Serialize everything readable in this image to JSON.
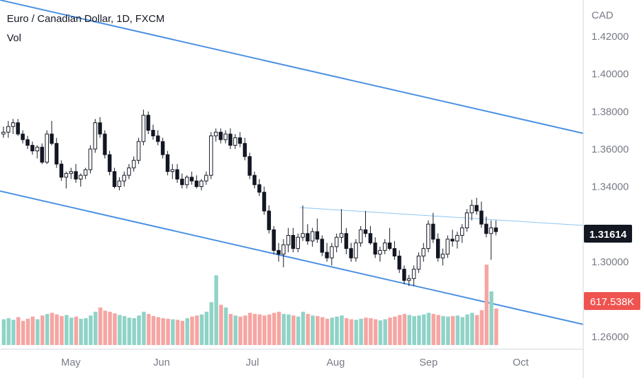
{
  "header": {
    "symbol_title": "Euro / Canadian Dollar, 1D, FXCM",
    "volume_label": "Vol"
  },
  "colors": {
    "up": "#26a69a",
    "down": "#ef5350",
    "vol_up": "#8fd3c7",
    "vol_down": "#f6a5a2",
    "channel": "#4a90e2",
    "neckline": "#8cc4f0",
    "price_label_bg": "#131722",
    "vol_label_bg": "#ef5350"
  },
  "chart_data": {
    "type": "candlestick",
    "currency": "CAD",
    "y_ticks": [
      "1.42000",
      "1.40000",
      "1.38000",
      "1.36000",
      "1.34000",
      "1.30000",
      "1.26000"
    ],
    "x_ticks": [
      "May",
      "Jun",
      "Jul",
      "Aug",
      "Sep",
      "Oct"
    ],
    "ylim": [
      1.255,
      1.43
    ],
    "last_price": "1.31614",
    "last_volume": "617.538K",
    "candles": [
      [
        1.368,
        1.372,
        1.366,
        1.369,
        48
      ],
      [
        1.369,
        1.375,
        1.366,
        1.372,
        50
      ],
      [
        1.372,
        1.376,
        1.368,
        1.374,
        47
      ],
      [
        1.374,
        1.376,
        1.367,
        1.368,
        52
      ],
      [
        1.368,
        1.37,
        1.363,
        1.365,
        45
      ],
      [
        1.365,
        1.367,
        1.36,
        1.362,
        49
      ],
      [
        1.362,
        1.364,
        1.357,
        1.359,
        53
      ],
      [
        1.359,
        1.362,
        1.355,
        1.361,
        48
      ],
      [
        1.361,
        1.363,
        1.352,
        1.353,
        55
      ],
      [
        1.353,
        1.37,
        1.352,
        1.368,
        58
      ],
      [
        1.368,
        1.375,
        1.362,
        1.363,
        60
      ],
      [
        1.363,
        1.366,
        1.35,
        1.352,
        57
      ],
      [
        1.352,
        1.354,
        1.343,
        1.345,
        54
      ],
      [
        1.345,
        1.348,
        1.339,
        1.347,
        56
      ],
      [
        1.347,
        1.35,
        1.344,
        1.348,
        51
      ],
      [
        1.348,
        1.352,
        1.342,
        1.344,
        53
      ],
      [
        1.344,
        1.347,
        1.34,
        1.346,
        49
      ],
      [
        1.346,
        1.35,
        1.344,
        1.349,
        50
      ],
      [
        1.349,
        1.362,
        1.347,
        1.36,
        55
      ],
      [
        1.36,
        1.376,
        1.358,
        1.374,
        62
      ],
      [
        1.374,
        1.377,
        1.366,
        1.368,
        70
      ],
      [
        1.368,
        1.37,
        1.355,
        1.357,
        64
      ],
      [
        1.357,
        1.359,
        1.346,
        1.348,
        62
      ],
      [
        1.348,
        1.35,
        1.339,
        1.34,
        59
      ],
      [
        1.34,
        1.345,
        1.338,
        1.343,
        56
      ],
      [
        1.343,
        1.348,
        1.34,
        1.346,
        54
      ],
      [
        1.346,
        1.352,
        1.344,
        1.35,
        51
      ],
      [
        1.35,
        1.356,
        1.348,
        1.354,
        50
      ],
      [
        1.354,
        1.366,
        1.352,
        1.364,
        55
      ],
      [
        1.364,
        1.381,
        1.362,
        1.378,
        62
      ],
      [
        1.378,
        1.38,
        1.368,
        1.37,
        58
      ],
      [
        1.37,
        1.373,
        1.365,
        1.367,
        54
      ],
      [
        1.367,
        1.37,
        1.362,
        1.364,
        52
      ],
      [
        1.364,
        1.366,
        1.355,
        1.357,
        50
      ],
      [
        1.357,
        1.359,
        1.346,
        1.348,
        49
      ],
      [
        1.348,
        1.352,
        1.344,
        1.349,
        48
      ],
      [
        1.349,
        1.352,
        1.342,
        1.344,
        47
      ],
      [
        1.344,
        1.347,
        1.339,
        1.341,
        45
      ],
      [
        1.341,
        1.346,
        1.339,
        1.345,
        50
      ],
      [
        1.345,
        1.348,
        1.341,
        1.343,
        53
      ],
      [
        1.343,
        1.346,
        1.339,
        1.34,
        55
      ],
      [
        1.34,
        1.344,
        1.338,
        1.343,
        57
      ],
      [
        1.343,
        1.348,
        1.341,
        1.346,
        62
      ],
      [
        1.346,
        1.369,
        1.344,
        1.367,
        80
      ],
      [
        1.367,
        1.371,
        1.364,
        1.369,
        130
      ],
      [
        1.369,
        1.371,
        1.363,
        1.365,
        75
      ],
      [
        1.365,
        1.37,
        1.363,
        1.368,
        70
      ],
      [
        1.368,
        1.371,
        1.36,
        1.362,
        58
      ],
      [
        1.362,
        1.368,
        1.36,
        1.366,
        55
      ],
      [
        1.366,
        1.369,
        1.361,
        1.363,
        53
      ],
      [
        1.363,
        1.366,
        1.354,
        1.356,
        55
      ],
      [
        1.356,
        1.358,
        1.344,
        1.346,
        60
      ],
      [
        1.346,
        1.348,
        1.339,
        1.341,
        58
      ],
      [
        1.341,
        1.344,
        1.335,
        1.337,
        57
      ],
      [
        1.337,
        1.34,
        1.325,
        1.327,
        55
      ],
      [
        1.327,
        1.33,
        1.315,
        1.317,
        57
      ],
      [
        1.317,
        1.319,
        1.304,
        1.306,
        60
      ],
      [
        1.306,
        1.31,
        1.3,
        1.304,
        62
      ],
      [
        1.304,
        1.312,
        1.297,
        1.309,
        58
      ],
      [
        1.309,
        1.318,
        1.305,
        1.314,
        57
      ],
      [
        1.314,
        1.318,
        1.305,
        1.307,
        55
      ],
      [
        1.307,
        1.315,
        1.305,
        1.313,
        53
      ],
      [
        1.313,
        1.33,
        1.311,
        1.315,
        62
      ],
      [
        1.315,
        1.32,
        1.309,
        1.311,
        58
      ],
      [
        1.311,
        1.318,
        1.308,
        1.316,
        55
      ],
      [
        1.316,
        1.323,
        1.31,
        1.312,
        54
      ],
      [
        1.312,
        1.314,
        1.303,
        1.305,
        52
      ],
      [
        1.305,
        1.31,
        1.3,
        1.302,
        49
      ],
      [
        1.302,
        1.31,
        1.298,
        1.308,
        51
      ],
      [
        1.308,
        1.315,
        1.305,
        1.313,
        53
      ],
      [
        1.313,
        1.328,
        1.31,
        1.315,
        55
      ],
      [
        1.315,
        1.318,
        1.304,
        1.307,
        50
      ],
      [
        1.307,
        1.31,
        1.3,
        1.302,
        48
      ],
      [
        1.302,
        1.312,
        1.3,
        1.31,
        47
      ],
      [
        1.31,
        1.319,
        1.308,
        1.317,
        49
      ],
      [
        1.317,
        1.327,
        1.313,
        1.315,
        51
      ],
      [
        1.315,
        1.319,
        1.309,
        1.31,
        50
      ],
      [
        1.31,
        1.313,
        1.302,
        1.304,
        48
      ],
      [
        1.304,
        1.308,
        1.3,
        1.306,
        46
      ],
      [
        1.306,
        1.312,
        1.304,
        1.31,
        48
      ],
      [
        1.31,
        1.318,
        1.306,
        1.307,
        51
      ],
      [
        1.307,
        1.311,
        1.301,
        1.303,
        53
      ],
      [
        1.303,
        1.306,
        1.294,
        1.296,
        56
      ],
      [
        1.296,
        1.298,
        1.288,
        1.29,
        58
      ],
      [
        1.29,
        1.293,
        1.287,
        1.291,
        56
      ],
      [
        1.291,
        1.298,
        1.287,
        1.296,
        54
      ],
      [
        1.296,
        1.305,
        1.294,
        1.303,
        55
      ],
      [
        1.303,
        1.31,
        1.3,
        1.307,
        57
      ],
      [
        1.307,
        1.322,
        1.305,
        1.32,
        60
      ],
      [
        1.32,
        1.326,
        1.31,
        1.312,
        58
      ],
      [
        1.312,
        1.315,
        1.3,
        1.302,
        56
      ],
      [
        1.302,
        1.307,
        1.298,
        1.304,
        54
      ],
      [
        1.304,
        1.314,
        1.302,
        1.312,
        53
      ],
      [
        1.312,
        1.317,
        1.308,
        1.311,
        54
      ],
      [
        1.311,
        1.316,
        1.307,
        1.314,
        55
      ],
      [
        1.314,
        1.32,
        1.31,
        1.318,
        52
      ],
      [
        1.318,
        1.328,
        1.316,
        1.326,
        57
      ],
      [
        1.326,
        1.333,
        1.322,
        1.33,
        60
      ],
      [
        1.33,
        1.334,
        1.325,
        1.327,
        56
      ],
      [
        1.327,
        1.332,
        1.318,
        1.32,
        65
      ],
      [
        1.32,
        1.324,
        1.313,
        1.315,
        150
      ],
      [
        1.315,
        1.322,
        1.301,
        1.318,
        100
      ],
      [
        1.318,
        1.322,
        1.314,
        1.316,
        68
      ]
    ]
  }
}
